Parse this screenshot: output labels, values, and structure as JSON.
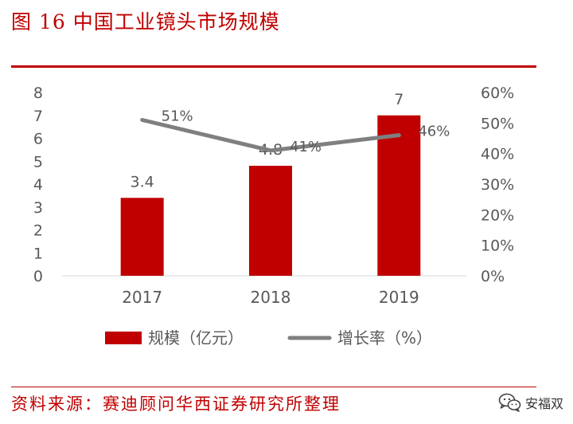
{
  "figure": {
    "title": "图 16 中国工业镜头市场规模",
    "source": "资料来源：赛迪顾问华西证券研究所整理"
  },
  "watermark": {
    "text": "安福双",
    "icon": "wechat-logo-icon"
  },
  "colors": {
    "accent": "#c00000",
    "bar": "#c00000",
    "line": "#7f7f7f",
    "text": "#595959"
  },
  "chart_data": {
    "type": "bar",
    "categories": [
      "2017",
      "2018",
      "2019"
    ],
    "series": [
      {
        "name": "规模（亿元）",
        "type": "bar",
        "axis": "left",
        "values": [
          3.4,
          4.8,
          7
        ],
        "labels": [
          "3.4",
          "4.8",
          "7"
        ]
      },
      {
        "name": "增长率（%）",
        "type": "line",
        "axis": "right",
        "values": [
          51,
          41,
          46
        ],
        "labels": [
          "51%",
          "41%",
          "46%"
        ]
      }
    ],
    "y_left": {
      "lim": [
        0,
        8
      ],
      "ticks": [
        "0",
        "1",
        "2",
        "3",
        "4",
        "5",
        "6",
        "7",
        "8"
      ]
    },
    "y_right": {
      "lim": [
        0,
        60
      ],
      "ticks": [
        "0%",
        "10%",
        "20%",
        "30%",
        "40%",
        "50%",
        "60%"
      ]
    },
    "grid": false,
    "legend": "bottom"
  }
}
